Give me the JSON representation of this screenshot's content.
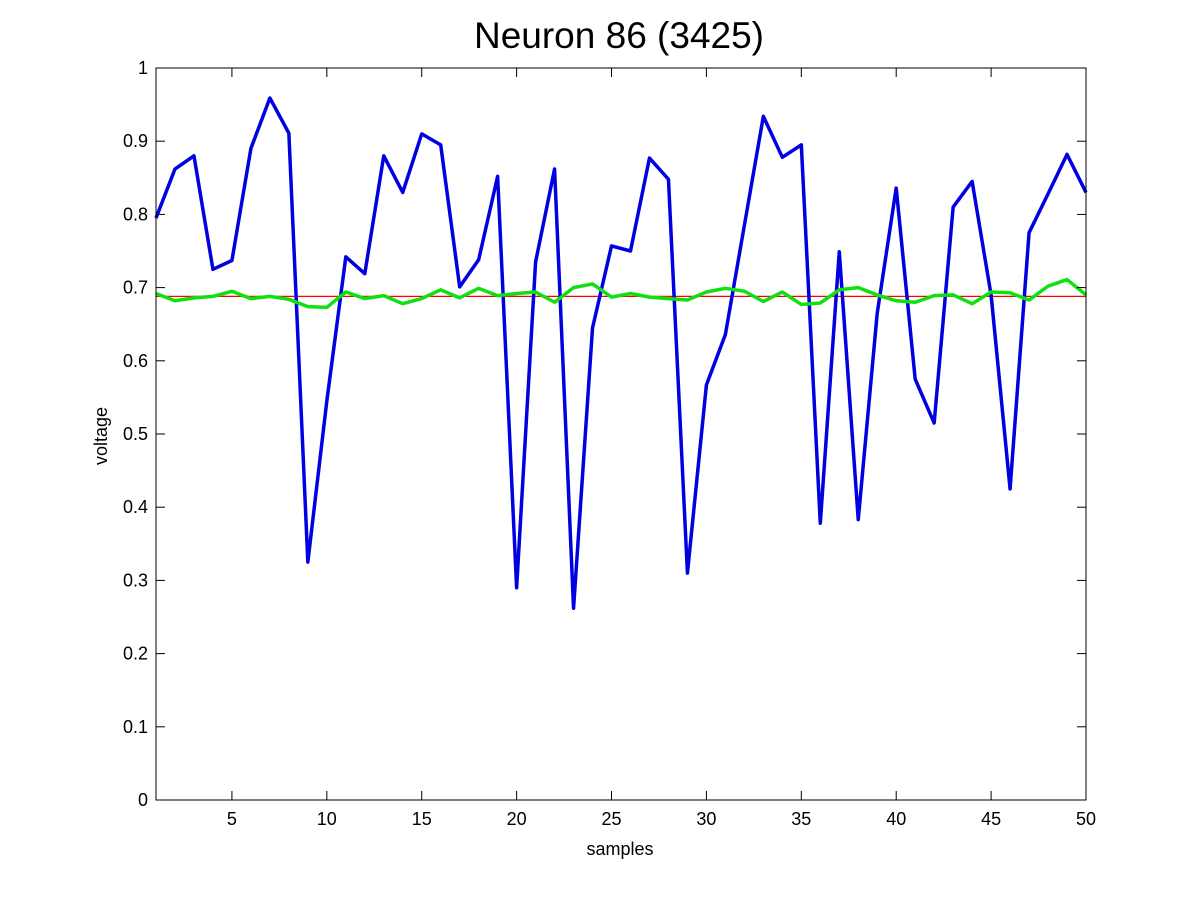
{
  "chart_data": {
    "type": "line",
    "title": "Neuron 86 (3425)",
    "xlabel": "samples",
    "ylabel": "voltage",
    "xlim": [
      1,
      50
    ],
    "ylim": [
      0,
      1
    ],
    "xticks": [
      5,
      10,
      15,
      20,
      25,
      30,
      35,
      40,
      45,
      50
    ],
    "yticks": [
      0,
      0.1,
      0.2,
      0.3,
      0.4,
      0.5,
      0.6,
      0.7,
      0.8,
      0.9,
      1
    ],
    "x": [
      1,
      2,
      3,
      4,
      5,
      6,
      7,
      8,
      9,
      10,
      11,
      12,
      13,
      14,
      15,
      16,
      17,
      18,
      19,
      20,
      21,
      22,
      23,
      24,
      25,
      26,
      27,
      28,
      29,
      30,
      31,
      32,
      33,
      34,
      35,
      36,
      37,
      38,
      39,
      40,
      41,
      42,
      43,
      44,
      45,
      46,
      47,
      48,
      49,
      50
    ],
    "series": [
      {
        "color": "#0000e0",
        "values": [
          0.795,
          0.862,
          0.88,
          0.725,
          0.737,
          0.89,
          0.959,
          0.911,
          0.325,
          0.545,
          0.742,
          0.719,
          0.88,
          0.83,
          0.91,
          0.895,
          0.701,
          0.738,
          0.852,
          0.29,
          0.735,
          0.862,
          0.262,
          0.645,
          0.757,
          0.75,
          0.877,
          0.848,
          0.31,
          0.567,
          0.636,
          0.785,
          0.934,
          0.878,
          0.895,
          0.378,
          0.749,
          0.383,
          0.665,
          0.836,
          0.575,
          0.515,
          0.81,
          0.845,
          0.69,
          0.425,
          0.775,
          0.828,
          0.882,
          0.83
        ]
      },
      {
        "color": "#10e010",
        "values": [
          0.692,
          0.682,
          0.686,
          0.688,
          0.695,
          0.685,
          0.688,
          0.684,
          0.674,
          0.673,
          0.694,
          0.685,
          0.689,
          0.678,
          0.685,
          0.697,
          0.686,
          0.699,
          0.689,
          0.692,
          0.694,
          0.68,
          0.7,
          0.705,
          0.687,
          0.692,
          0.687,
          0.685,
          0.683,
          0.694,
          0.699,
          0.695,
          0.681,
          0.694,
          0.677,
          0.679,
          0.697,
          0.7,
          0.69,
          0.682,
          0.68,
          0.689,
          0.69,
          0.678,
          0.694,
          0.693,
          0.683,
          0.702,
          0.711,
          0.69
        ]
      },
      {
        "color": "#ff0000",
        "values": [
          0.688,
          0.688,
          0.688,
          0.688,
          0.688,
          0.688,
          0.688,
          0.688,
          0.688,
          0.688,
          0.688,
          0.688,
          0.688,
          0.688,
          0.688,
          0.688,
          0.688,
          0.688,
          0.688,
          0.688,
          0.688,
          0.688,
          0.688,
          0.688,
          0.688,
          0.688,
          0.688,
          0.688,
          0.688,
          0.688,
          0.688,
          0.688,
          0.688,
          0.688,
          0.688,
          0.688,
          0.688,
          0.688,
          0.688,
          0.688,
          0.688,
          0.688,
          0.688,
          0.688,
          0.688,
          0.688,
          0.688,
          0.688,
          0.688,
          0.688
        ]
      }
    ],
    "grid": false,
    "legend": "none"
  }
}
